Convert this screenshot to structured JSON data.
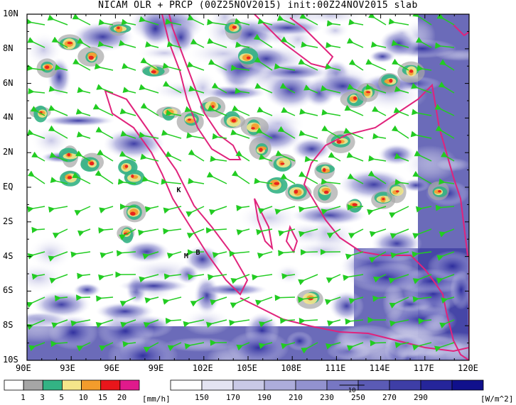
{
  "title": "NICAM OLR + PRCP (00Z25NOV2015) init:00Z24NOV2015 slab",
  "lon_labels": [
    "90E",
    "93E",
    "96E",
    "99E",
    "102E",
    "105E",
    "108E",
    "111E",
    "114E",
    "117E",
    "120E"
  ],
  "lat_labels": [
    "10N",
    "8N",
    "6N",
    "4N",
    "2N",
    "EQ",
    "2S",
    "4S",
    "6S",
    "8S",
    "10S"
  ],
  "cities": [
    {
      "label": "K",
      "lon": 100.3,
      "lat": -0.2
    },
    {
      "label": "M",
      "lon": 100.8,
      "lat": -4.0
    },
    {
      "label": "B",
      "lon": 101.6,
      "lat": -3.8
    }
  ],
  "precip_colorbar": {
    "ticks": [
      "1",
      "3",
      "5",
      "10",
      "15",
      "20"
    ],
    "unit": "[mm/h]",
    "colors": [
      "#ffffff",
      "#a6a6a6",
      "#33b384",
      "#f5e68a",
      "#f39c2c",
      "#e8161b",
      "#e01a8c"
    ]
  },
  "olr_colorbar": {
    "ticks": [
      "150",
      "170",
      "190",
      "210",
      "230",
      "250",
      "270",
      "290"
    ],
    "unit": "[W/m^2]",
    "colors": [
      "#ffffff",
      "#e4e4f2",
      "#c9c9e6",
      "#adaddb",
      "#9292cf",
      "#7777c3",
      "#5b5bb5",
      "#3e3ea6",
      "#25259a",
      "#10108c"
    ],
    "vector_ref": "10"
  },
  "colors": {
    "coast": "#e0237c",
    "wind": "#22cc22",
    "frame": "#000000"
  }
}
